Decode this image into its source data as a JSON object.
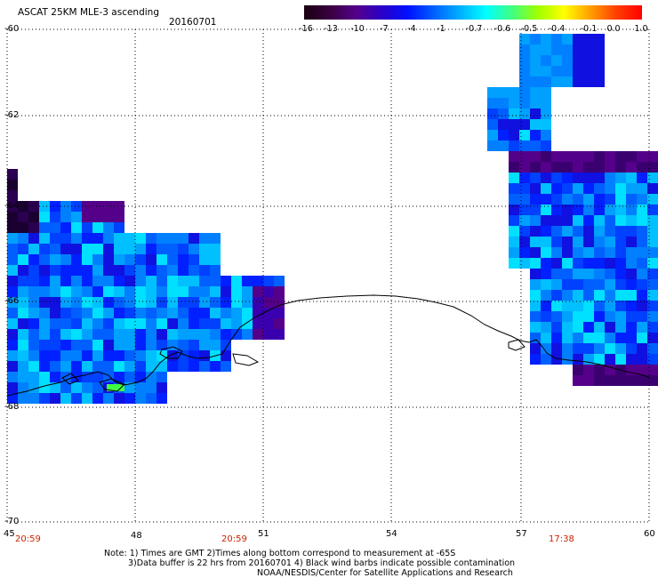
{
  "header": {
    "title": "ASCAT 25KM MLE-3 ascending",
    "date": "20160701"
  },
  "colorbar": {
    "labels": [
      "-16",
      "-13",
      "-10",
      "-7",
      "-4",
      "-1",
      "-0.7",
      "-0.6",
      "-0.5",
      "-0.4",
      "-0.1",
      "0.0",
      "1.0"
    ],
    "colors": [
      "#1a0010",
      "#3a0040",
      "#55008a",
      "#2a00c8",
      "#0010ff",
      "#0060ff",
      "#00b0ff",
      "#00ffff",
      "#40ff80",
      "#a0ff00",
      "#ffff00",
      "#ffa000",
      "#ff4000",
      "#ff0000"
    ]
  },
  "axes": {
    "lat_labels": [
      "-60",
      "-62",
      "-64",
      "-66",
      "-68",
      "-70"
    ],
    "lon_labels": [
      "45",
      "48",
      "51",
      "54",
      "57",
      "60"
    ],
    "times": [
      "20:59",
      "20:59",
      "17:38"
    ]
  },
  "notes": {
    "line1": "Note: 1) Times are GMT 2)Times along bottom correspond to measurement at -65S",
    "line2": "3)Data buffer is 22 hrs from 20160701 4) Black wind barbs indicate possible contamination",
    "line3": "NOAA/NESDIS/Center for Satellite Applications and Research"
  }
}
